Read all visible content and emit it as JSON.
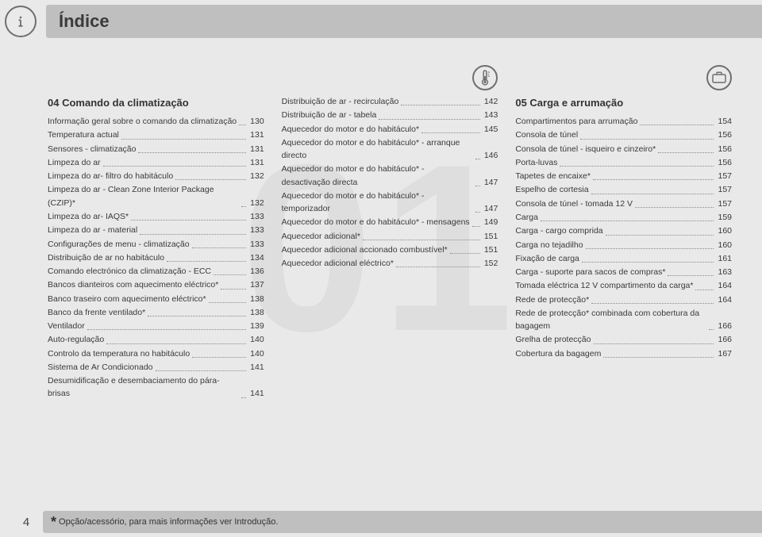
{
  "page_number": "4",
  "title": "Índice",
  "watermark": "01",
  "footer_note": "Opção/acessório, para mais informações ver Introdução.",
  "footer_star": "*",
  "col1": {
    "heading": "04 Comando da climatização",
    "entries": [
      {
        "label": "Informação geral sobre o comando da climatização",
        "page": "130"
      },
      {
        "label": "Temperatura actual",
        "page": "131"
      },
      {
        "label": "Sensores - climatização",
        "page": "131"
      },
      {
        "label": "Limpeza do ar",
        "page": "131"
      },
      {
        "label": "Limpeza do ar- filtro do habitáculo",
        "page": "132"
      },
      {
        "label": "Limpeza do ar - Clean Zone Interior Package (CZIP)*",
        "page": "132"
      },
      {
        "label": "Limpeza do ar- IAQS*",
        "page": "133"
      },
      {
        "label": "Limpeza do ar - material",
        "page": "133"
      },
      {
        "label": "Configurações de menu - climatização",
        "page": "133"
      },
      {
        "label": "Distribuição de ar no habitáculo",
        "page": "134"
      },
      {
        "label": "Comando electrónico da climatização - ECC",
        "page": "136"
      },
      {
        "label": "Bancos dianteiros com aquecimento eléctrico*",
        "page": "137"
      },
      {
        "label": "Banco traseiro com aquecimento eléctrico*",
        "page": "138"
      },
      {
        "label": "Banco da frente ventilado*",
        "page": "138"
      },
      {
        "label": "Ventilador",
        "page": "139"
      },
      {
        "label": "Auto-regulação",
        "page": "140"
      },
      {
        "label": "Controlo da temperatura no habitáculo",
        "page": "140"
      },
      {
        "label": "Sistema de Ar Condicionado",
        "page": "141"
      },
      {
        "label": "Desumidificação e desembaciamento do pára-brisas",
        "page": "141"
      }
    ]
  },
  "col2": {
    "entries": [
      {
        "label": "Distribuição de ar - recirculação",
        "page": "142"
      },
      {
        "label": "Distribuição de ar - tabela",
        "page": "143"
      },
      {
        "label": "Aquecedor do motor e do habitáculo*",
        "page": "145"
      },
      {
        "label": "Aquecedor do motor e do habitáculo* - arranque directo",
        "page": "146"
      },
      {
        "label": "Aquecedor do motor e do habitáculo* - desactivação directa",
        "page": "147"
      },
      {
        "label": "Aquecedor do motor e do habitáculo* - temporizador",
        "page": "147"
      },
      {
        "label": "Aquecedor do motor e do habitáculo* - mensagens",
        "page": "149"
      },
      {
        "label": "Aquecedor adicional*",
        "page": "151"
      },
      {
        "label": "Aquecedor adicional accionado combustível*",
        "page": "151"
      },
      {
        "label": "Aquecedor adicional eléctrico*",
        "page": "152"
      }
    ]
  },
  "col3": {
    "heading": "05 Carga e arrumação",
    "entries": [
      {
        "label": "Compartimentos para arrumação",
        "page": "154"
      },
      {
        "label": "Consola de túnel",
        "page": "156"
      },
      {
        "label": "Consola de túnel - isqueiro e cinzeiro*",
        "page": "156"
      },
      {
        "label": "Porta-luvas",
        "page": "156"
      },
      {
        "label": "Tapetes de encaixe*",
        "page": "157"
      },
      {
        "label": "Espelho de cortesia",
        "page": "157"
      },
      {
        "label": "Consola de túnel - tomada 12 V",
        "page": "157"
      },
      {
        "label": "Carga",
        "page": "159"
      },
      {
        "label": "Carga - cargo comprida",
        "page": "160"
      },
      {
        "label": "Carga no tejadilho",
        "page": "160"
      },
      {
        "label": "Fixação de carga",
        "page": "161"
      },
      {
        "label": "Carga - suporte para sacos de compras*",
        "page": "163"
      },
      {
        "label": "Tomada eléctrica 12 V compartimento da carga*",
        "page": "164"
      },
      {
        "label": "Rede de protecção*",
        "page": "164"
      },
      {
        "label": "Rede de protecção* combinada com cobertura da bagagem",
        "page": "166"
      },
      {
        "label": "Grelha de protecção",
        "page": "166"
      },
      {
        "label": "Cobertura da bagagem",
        "page": "167"
      }
    ]
  },
  "colors": {
    "bg": "#e9e9e9",
    "stripe": "#bfbfbf",
    "text": "#3a3a3a",
    "watermark": "#dedede",
    "dots": "#8a8a8a"
  }
}
